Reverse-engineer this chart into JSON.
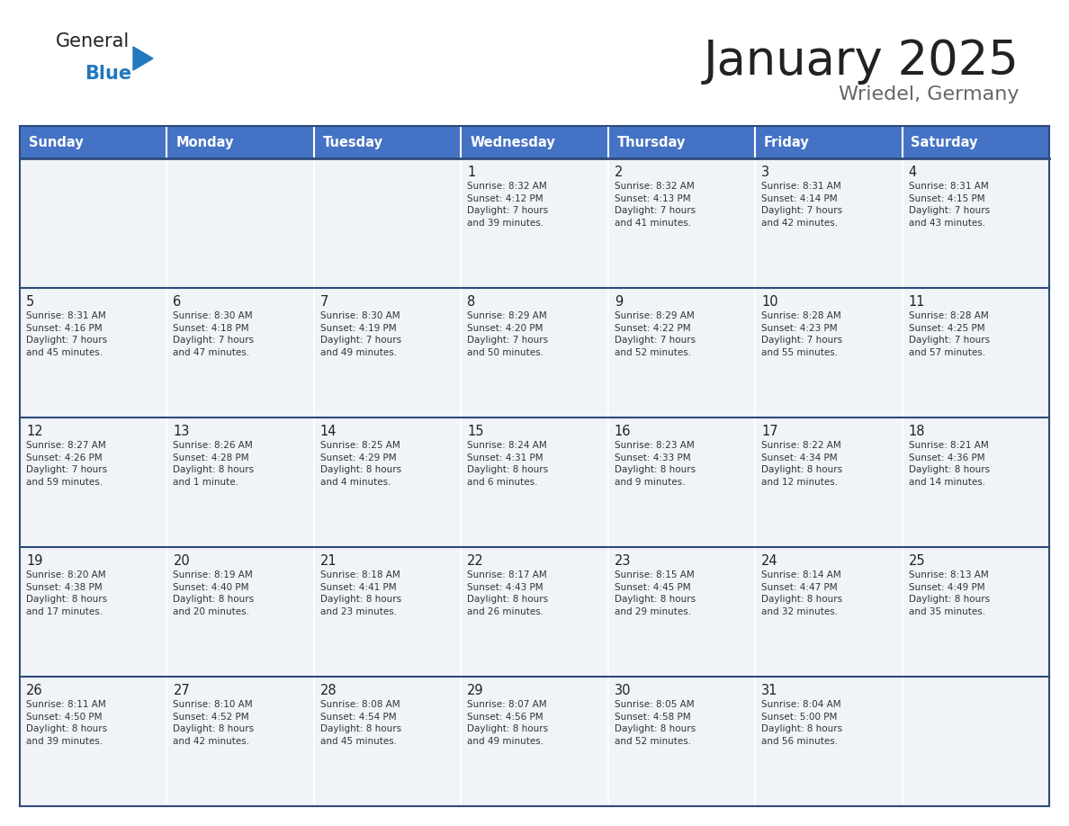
{
  "title": "January 2025",
  "subtitle": "Wriedel, Germany",
  "days_of_week": [
    "Sunday",
    "Monday",
    "Tuesday",
    "Wednesday",
    "Thursday",
    "Friday",
    "Saturday"
  ],
  "header_bg": "#4472C4",
  "header_text": "#FFFFFF",
  "cell_bg": "#F0F4F8",
  "day_number_color": "#222222",
  "cell_text_color": "#333333",
  "divider_color": "#2E4A7A",
  "title_color": "#222222",
  "subtitle_color": "#666666",
  "logo_general_color": "#222222",
  "logo_blue_color": "#2478BE",
  "calendar": [
    [
      {
        "day": null,
        "text": null
      },
      {
        "day": null,
        "text": null
      },
      {
        "day": null,
        "text": null
      },
      {
        "day": 1,
        "text": "Sunrise: 8:32 AM\nSunset: 4:12 PM\nDaylight: 7 hours\nand 39 minutes."
      },
      {
        "day": 2,
        "text": "Sunrise: 8:32 AM\nSunset: 4:13 PM\nDaylight: 7 hours\nand 41 minutes."
      },
      {
        "day": 3,
        "text": "Sunrise: 8:31 AM\nSunset: 4:14 PM\nDaylight: 7 hours\nand 42 minutes."
      },
      {
        "day": 4,
        "text": "Sunrise: 8:31 AM\nSunset: 4:15 PM\nDaylight: 7 hours\nand 43 minutes."
      }
    ],
    [
      {
        "day": 5,
        "text": "Sunrise: 8:31 AM\nSunset: 4:16 PM\nDaylight: 7 hours\nand 45 minutes."
      },
      {
        "day": 6,
        "text": "Sunrise: 8:30 AM\nSunset: 4:18 PM\nDaylight: 7 hours\nand 47 minutes."
      },
      {
        "day": 7,
        "text": "Sunrise: 8:30 AM\nSunset: 4:19 PM\nDaylight: 7 hours\nand 49 minutes."
      },
      {
        "day": 8,
        "text": "Sunrise: 8:29 AM\nSunset: 4:20 PM\nDaylight: 7 hours\nand 50 minutes."
      },
      {
        "day": 9,
        "text": "Sunrise: 8:29 AM\nSunset: 4:22 PM\nDaylight: 7 hours\nand 52 minutes."
      },
      {
        "day": 10,
        "text": "Sunrise: 8:28 AM\nSunset: 4:23 PM\nDaylight: 7 hours\nand 55 minutes."
      },
      {
        "day": 11,
        "text": "Sunrise: 8:28 AM\nSunset: 4:25 PM\nDaylight: 7 hours\nand 57 minutes."
      }
    ],
    [
      {
        "day": 12,
        "text": "Sunrise: 8:27 AM\nSunset: 4:26 PM\nDaylight: 7 hours\nand 59 minutes."
      },
      {
        "day": 13,
        "text": "Sunrise: 8:26 AM\nSunset: 4:28 PM\nDaylight: 8 hours\nand 1 minute."
      },
      {
        "day": 14,
        "text": "Sunrise: 8:25 AM\nSunset: 4:29 PM\nDaylight: 8 hours\nand 4 minutes."
      },
      {
        "day": 15,
        "text": "Sunrise: 8:24 AM\nSunset: 4:31 PM\nDaylight: 8 hours\nand 6 minutes."
      },
      {
        "day": 16,
        "text": "Sunrise: 8:23 AM\nSunset: 4:33 PM\nDaylight: 8 hours\nand 9 minutes."
      },
      {
        "day": 17,
        "text": "Sunrise: 8:22 AM\nSunset: 4:34 PM\nDaylight: 8 hours\nand 12 minutes."
      },
      {
        "day": 18,
        "text": "Sunrise: 8:21 AM\nSunset: 4:36 PM\nDaylight: 8 hours\nand 14 minutes."
      }
    ],
    [
      {
        "day": 19,
        "text": "Sunrise: 8:20 AM\nSunset: 4:38 PM\nDaylight: 8 hours\nand 17 minutes."
      },
      {
        "day": 20,
        "text": "Sunrise: 8:19 AM\nSunset: 4:40 PM\nDaylight: 8 hours\nand 20 minutes."
      },
      {
        "day": 21,
        "text": "Sunrise: 8:18 AM\nSunset: 4:41 PM\nDaylight: 8 hours\nand 23 minutes."
      },
      {
        "day": 22,
        "text": "Sunrise: 8:17 AM\nSunset: 4:43 PM\nDaylight: 8 hours\nand 26 minutes."
      },
      {
        "day": 23,
        "text": "Sunrise: 8:15 AM\nSunset: 4:45 PM\nDaylight: 8 hours\nand 29 minutes."
      },
      {
        "day": 24,
        "text": "Sunrise: 8:14 AM\nSunset: 4:47 PM\nDaylight: 8 hours\nand 32 minutes."
      },
      {
        "day": 25,
        "text": "Sunrise: 8:13 AM\nSunset: 4:49 PM\nDaylight: 8 hours\nand 35 minutes."
      }
    ],
    [
      {
        "day": 26,
        "text": "Sunrise: 8:11 AM\nSunset: 4:50 PM\nDaylight: 8 hours\nand 39 minutes."
      },
      {
        "day": 27,
        "text": "Sunrise: 8:10 AM\nSunset: 4:52 PM\nDaylight: 8 hours\nand 42 minutes."
      },
      {
        "day": 28,
        "text": "Sunrise: 8:08 AM\nSunset: 4:54 PM\nDaylight: 8 hours\nand 45 minutes."
      },
      {
        "day": 29,
        "text": "Sunrise: 8:07 AM\nSunset: 4:56 PM\nDaylight: 8 hours\nand 49 minutes."
      },
      {
        "day": 30,
        "text": "Sunrise: 8:05 AM\nSunset: 4:58 PM\nDaylight: 8 hours\nand 52 minutes."
      },
      {
        "day": 31,
        "text": "Sunrise: 8:04 AM\nSunset: 5:00 PM\nDaylight: 8 hours\nand 56 minutes."
      },
      {
        "day": null,
        "text": null
      }
    ]
  ]
}
